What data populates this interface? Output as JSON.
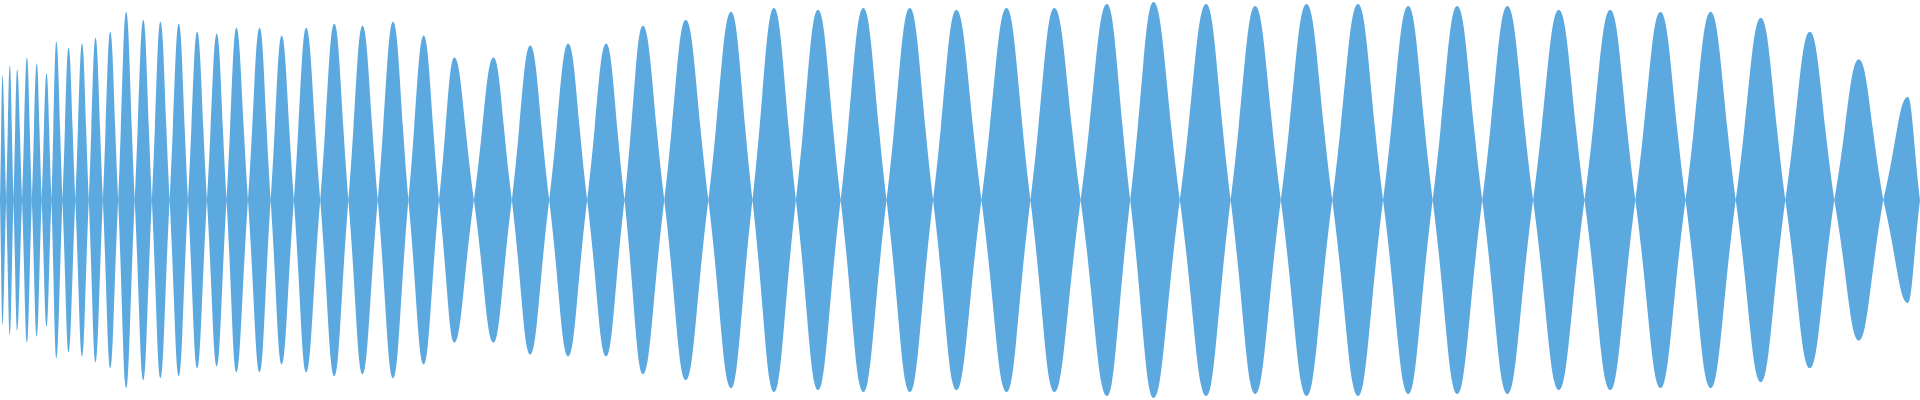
{
  "chart_data": {
    "type": "waveform",
    "color": "#5ca9e0",
    "xlim": [
      0,
      1568
    ],
    "ylim": [
      -1,
      1
    ],
    "x": [
      2,
      8,
      14,
      22,
      30,
      38,
      46,
      56,
      67,
      78,
      90,
      103,
      117,
      131,
      146,
      161,
      177,
      193,
      212,
      230,
      250,
      273,
      296,
      321,
      346,
      371,
      403,
      433,
      464,
      495,
      525,
      560,
      597,
      632,
      668,
      705,
      743,
      781,
      822,
      861,
      904,
      942,
      985,
      1025,
      1067,
      1109,
      1150,
      1190,
      1231,
      1273,
      1315,
      1356,
      1397,
      1438,
      1478,
      1518,
      1558
    ],
    "values": [
      0.63,
      0.68,
      0.66,
      0.72,
      0.69,
      0.64,
      0.8,
      0.77,
      0.79,
      0.82,
      0.85,
      0.95,
      0.91,
      0.9,
      0.89,
      0.85,
      0.84,
      0.87,
      0.87,
      0.83,
      0.87,
      0.89,
      0.88,
      0.9,
      0.83,
      0.72,
      0.72,
      0.78,
      0.79,
      0.79,
      0.88,
      0.91,
      0.95,
      0.97,
      0.96,
      0.97,
      0.97,
      0.96,
      0.97,
      0.97,
      0.99,
      1.0,
      0.99,
      0.98,
      0.99,
      0.99,
      0.98,
      0.98,
      0.98,
      0.96,
      0.96,
      0.95,
      0.95,
      0.92,
      0.85,
      0.71,
      0.52
    ]
  }
}
